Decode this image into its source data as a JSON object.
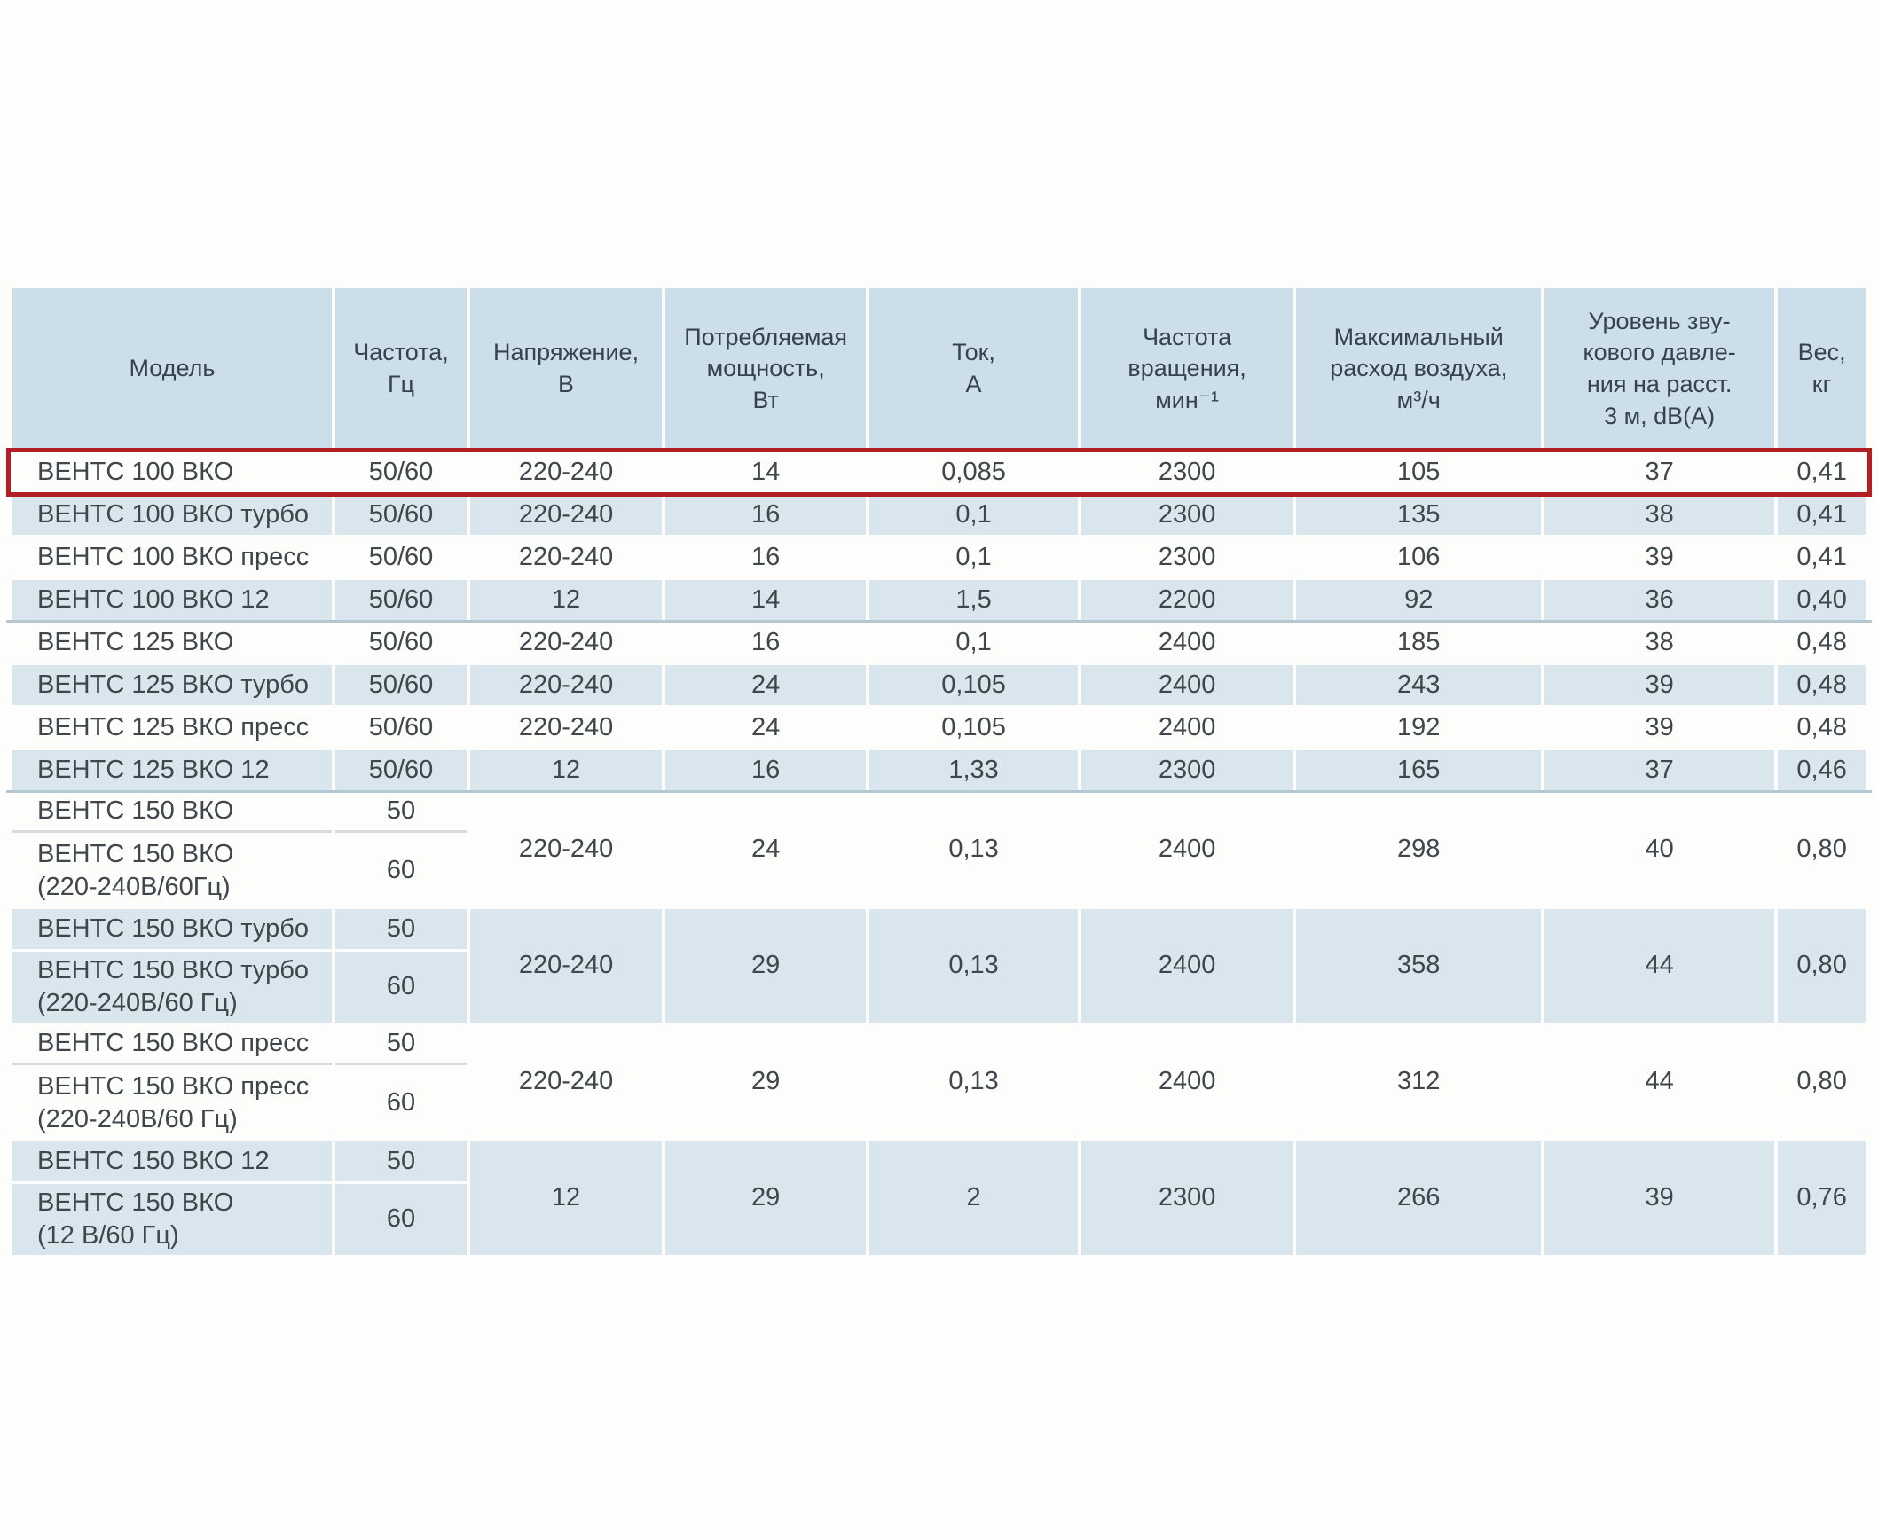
{
  "page": {
    "background_color": "#fdfdfb",
    "highlight_color": "#b21e24",
    "header_bg_color": "#cbdee9",
    "stripe_bg_color": "#d9e6ee",
    "group_divider_color": "#b5c7d1"
  },
  "table": {
    "columns": [
      {
        "id": "model",
        "label": "Модель"
      },
      {
        "id": "frequency",
        "label": "Частота,\nГц"
      },
      {
        "id": "voltage",
        "label": "Напряжение,\nВ"
      },
      {
        "id": "power",
        "label": "Потребляемая\nмощность,\nВт"
      },
      {
        "id": "current",
        "label": "Ток,\nА"
      },
      {
        "id": "speed",
        "label": "Частота\nвращения,\nмин⁻¹"
      },
      {
        "id": "airflow",
        "label": "Максимальный\nрасход воздуха,\nм³/ч"
      },
      {
        "id": "noise",
        "label": "Уровень зву-\nкового давле-\nния на расст.\n3 м, dB(A)"
      },
      {
        "id": "weight",
        "label": "Вес,\nкг"
      }
    ],
    "rows": [
      {
        "type": "single",
        "stripe": "white",
        "highlighted": true,
        "model": "ВЕНТС 100 ВКО",
        "frequency": "50/60",
        "voltage": "220-240",
        "power": "14",
        "current": "0,085",
        "speed": "2300",
        "airflow": "105",
        "noise": "37",
        "weight": "0,41"
      },
      {
        "type": "single",
        "stripe": "blue",
        "model": "ВЕНТС 100 ВКО турбо",
        "frequency": "50/60",
        "voltage": "220-240",
        "power": "16",
        "current": "0,1",
        "speed": "2300",
        "airflow": "135",
        "noise": "38",
        "weight": "0,41"
      },
      {
        "type": "single",
        "stripe": "white",
        "model": "ВЕНТС 100 ВКО пресс",
        "frequency": "50/60",
        "voltage": "220-240",
        "power": "16",
        "current": "0,1",
        "speed": "2300",
        "airflow": "106",
        "noise": "39",
        "weight": "0,41"
      },
      {
        "type": "single",
        "stripe": "blue",
        "divider_after": true,
        "model": "ВЕНТС 100 ВКО 12",
        "frequency": "50/60",
        "voltage": "12",
        "power": "14",
        "current": "1,5",
        "speed": "2200",
        "airflow": "92",
        "noise": "36",
        "weight": "0,40"
      },
      {
        "type": "single",
        "stripe": "white",
        "model": "ВЕНТС 125 ВКО",
        "frequency": "50/60",
        "voltage": "220-240",
        "power": "16",
        "current": "0,1",
        "speed": "2400",
        "airflow": "185",
        "noise": "38",
        "weight": "0,48"
      },
      {
        "type": "single",
        "stripe": "blue",
        "model": "ВЕНТС 125 ВКО турбо",
        "frequency": "50/60",
        "voltage": "220-240",
        "power": "24",
        "current": "0,105",
        "speed": "2400",
        "airflow": "243",
        "noise": "39",
        "weight": "0,48"
      },
      {
        "type": "single",
        "stripe": "white",
        "model": "ВЕНТС 125 ВКО пресс",
        "frequency": "50/60",
        "voltage": "220-240",
        "power": "24",
        "current": "0,105",
        "speed": "2400",
        "airflow": "192",
        "noise": "39",
        "weight": "0,48"
      },
      {
        "type": "single",
        "stripe": "blue",
        "divider_after": true,
        "model": "ВЕНТС 125 ВКО 12",
        "frequency": "50/60",
        "voltage": "12",
        "power": "16",
        "current": "1,33",
        "speed": "2300",
        "airflow": "165",
        "noise": "37",
        "weight": "0,46"
      },
      {
        "type": "group",
        "stripe": "white",
        "sub_rows": [
          {
            "model": "ВЕНТС 150 ВКО",
            "frequency": "50"
          },
          {
            "model": "ВЕНТС 150 ВКО\n(220-240В/60Гц)",
            "frequency": "60"
          }
        ],
        "voltage": "220-240",
        "power": "24",
        "current": "0,13",
        "speed": "2400",
        "airflow": "298",
        "noise": "40",
        "weight": "0,80"
      },
      {
        "type": "group",
        "stripe": "blue",
        "sub_rows": [
          {
            "model": "ВЕНТС 150 ВКО турбо",
            "frequency": "50"
          },
          {
            "model": "ВЕНТС 150 ВКО турбо\n(220-240В/60 Гц)",
            "frequency": "60"
          }
        ],
        "voltage": "220-240",
        "power": "29",
        "current": "0,13",
        "speed": "2400",
        "airflow": "358",
        "noise": "44",
        "weight": "0,80"
      },
      {
        "type": "group",
        "stripe": "white",
        "sub_rows": [
          {
            "model": "ВЕНТС 150 ВКО пресс",
            "frequency": "50"
          },
          {
            "model": "ВЕНТС 150 ВКО пресс\n(220-240В/60 Гц)",
            "frequency": "60"
          }
        ],
        "voltage": "220-240",
        "power": "29",
        "current": "0,13",
        "speed": "2400",
        "airflow": "312",
        "noise": "44",
        "weight": "0,80"
      },
      {
        "type": "group",
        "stripe": "blue",
        "sub_rows": [
          {
            "model": "ВЕНТС 150 ВКО 12",
            "frequency": "50"
          },
          {
            "model": "ВЕНТС 150 ВКО\n(12 В/60 Гц)",
            "frequency": "60"
          }
        ],
        "voltage": "12",
        "power": "29",
        "current": "2",
        "speed": "2300",
        "airflow": "266",
        "noise": "39",
        "weight": "0,76"
      }
    ]
  }
}
